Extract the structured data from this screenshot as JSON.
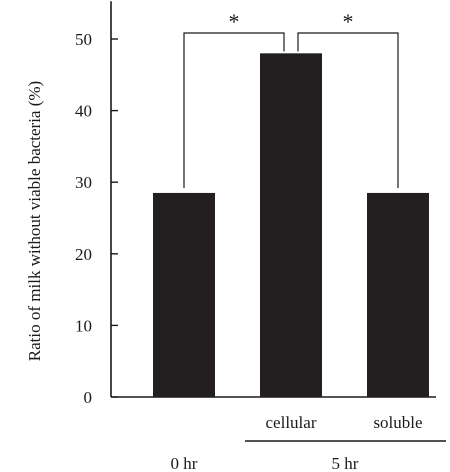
{
  "chart_data": {
    "type": "bar",
    "categories": [
      "",
      "cellular",
      "soluble"
    ],
    "groups": [
      "0 hr",
      "5 hr"
    ],
    "values": [
      28.5,
      48,
      28.5
    ],
    "ylabel": "Ratio of milk without viable bacteria (%)",
    "xlabel": "",
    "ylim": [
      0,
      55
    ],
    "yticks": [
      0,
      10,
      20,
      30,
      40,
      50
    ],
    "grid": false,
    "significance": [
      {
        "from": 0,
        "to": 1,
        "label": "*"
      },
      {
        "from": 1,
        "to": 2,
        "label": "*"
      }
    ],
    "colors": {
      "bar": "#231f20",
      "axis": "#1a1a1a"
    }
  }
}
